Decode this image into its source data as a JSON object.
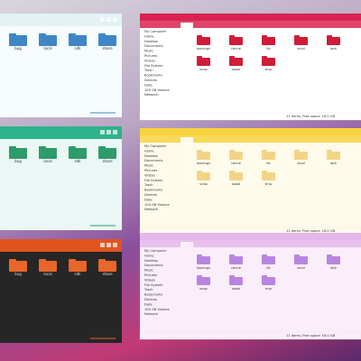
{
  "sidebar": [
    "My Computer",
    "Home",
    "Desktop",
    "Documents",
    "Music",
    "Pictures",
    "Videos",
    "File System",
    "Trash",
    "Bookmarks",
    "Devices",
    "Data",
    "100 GB Volume",
    "Network"
  ],
  "folders": [
    "backups",
    "cache",
    "lib",
    "local",
    "lock",
    "snap",
    "spool",
    "tmp"
  ],
  "small_folders": [
    "bug",
    "local",
    "sdk",
    "share"
  ],
  "status": "11 items, Free space: 16.0 GB",
  "windows": [
    {
      "kind": "small",
      "title_color": "#e2f2f5",
      "body_color": "#f6fbfd",
      "folder_color": "#3f86c6",
      "text_color": "#333333"
    },
    {
      "kind": "small",
      "title_color": "#2fb38d",
      "body_color": "#eaf7f5",
      "folder_color": "#2e9b6a",
      "text_color": "#333333"
    },
    {
      "kind": "small",
      "title_color": "#e2541f",
      "body_color": "#262626",
      "folder_color": "#e8662a",
      "text_color": "#dddddd"
    },
    {
      "kind": "large",
      "title_color": "#d92350",
      "body_color": "#ffffff",
      "folder_color": "#d01c38",
      "text_color": "#333333"
    },
    {
      "kind": "large",
      "title_color": "#f7d43e",
      "body_color": "#fffbea",
      "folder_color": "#f3d486",
      "text_color": "#333333"
    },
    {
      "kind": "large",
      "title_color": "#e3b8e9",
      "body_color": "#fbeefb",
      "folder_color": "#b785e0",
      "text_color": "#333333"
    }
  ]
}
